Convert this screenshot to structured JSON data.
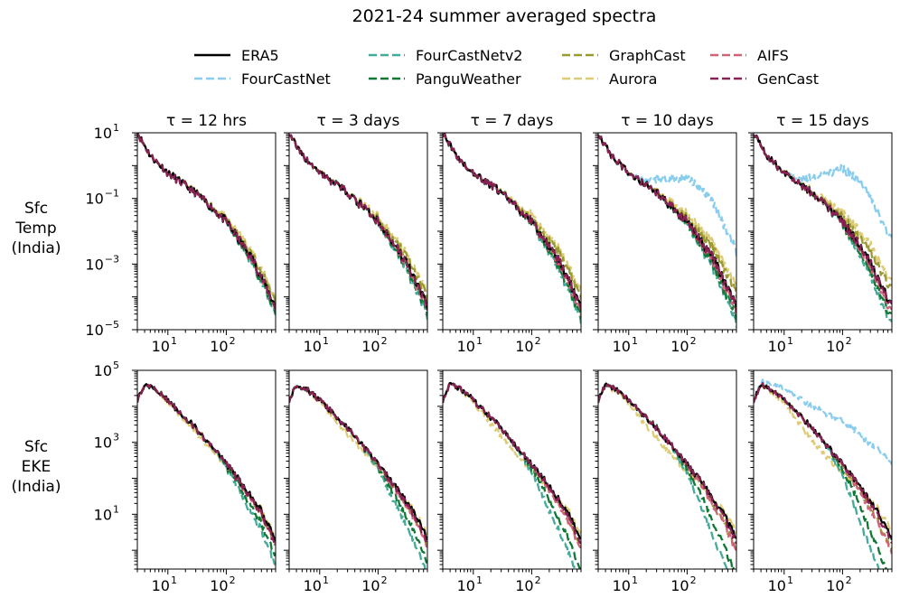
{
  "title": "2021-24 summer averaged spectra",
  "colors": {
    "ERA5": "#000000",
    "FourCastNet": "#88ccee",
    "FourCastNetv2": "#44aa99",
    "PanguWeather": "#117733",
    "GraphCast": "#999933",
    "Aurora": "#ddcc77",
    "AIFS": "#cc6677",
    "GenCast": "#882255"
  },
  "chart_data": {
    "type": "line",
    "title": "2021-24 summer averaged spectra",
    "legend": {
      "placement": "top-center",
      "entries": [
        "ERA5",
        "FourCastNet",
        "FourCastNetv2",
        "PanguWeather",
        "GraphCast",
        "Aurora",
        "AIFS",
        "GenCast"
      ]
    },
    "columns": [
      "τ = 12 hrs",
      "τ = 3 days",
      "τ = 7 days",
      "τ = 10 days",
      "τ = 15 days"
    ],
    "x_scale": "log",
    "xlim": [
      3,
      700
    ],
    "x_ticks": [
      {
        "value": 10,
        "label": "10",
        "exp": "1"
      },
      {
        "value": 100,
        "label": "10",
        "exp": "2"
      }
    ],
    "rows": [
      {
        "label": [
          "Sfc",
          "Temp",
          "(India)"
        ],
        "y_scale": "log",
        "ylim": [
          1e-05,
          10
        ],
        "y_ticks": [
          {
            "value": 10,
            "label": "10",
            "exp": "1"
          },
          {
            "value": 0.1,
            "label": "10",
            "exp": "−1"
          },
          {
            "value": 0.001,
            "label": "10",
            "exp": "−3"
          },
          {
            "value": 1e-05,
            "label": "10",
            "exp": "−5"
          }
        ],
        "base_curve": [
          [
            3,
            10
          ],
          [
            5,
            2
          ],
          [
            10,
            0.6
          ],
          [
            30,
            0.15
          ],
          [
            100,
            0.02
          ],
          [
            300,
            0.0012
          ],
          [
            700,
            5e-05
          ]
        ],
        "deviations": {
          "FourCastNet": [
            [
              3,
              1
            ],
            [
              10,
              1
            ],
            [
              20,
              1.5
            ],
            [
              50,
              8
            ],
            [
              100,
              40
            ],
            [
              200,
              100
            ],
            [
              400,
              100
            ],
            [
              700,
              100
            ]
          ],
          "FourCastNetv2": [
            [
              3,
              1
            ],
            [
              30,
              1
            ],
            [
              100,
              0.85
            ],
            [
              300,
              0.4
            ],
            [
              700,
              0.25
            ]
          ],
          "PanguWeather": [
            [
              3,
              1
            ],
            [
              30,
              1
            ],
            [
              100,
              0.9
            ],
            [
              300,
              0.55
            ],
            [
              700,
              0.4
            ]
          ],
          "GraphCast": [
            [
              3,
              1
            ],
            [
              30,
              1
            ],
            [
              100,
              1.3
            ],
            [
              300,
              2.2
            ],
            [
              700,
              3.0
            ]
          ],
          "Aurora": [
            [
              3,
              1
            ],
            [
              30,
              1.1
            ],
            [
              100,
              1.8
            ],
            [
              300,
              3.5
            ],
            [
              700,
              5.0
            ]
          ],
          "AIFS": [
            [
              3,
              1
            ],
            [
              30,
              1
            ],
            [
              100,
              0.95
            ],
            [
              300,
              0.75
            ],
            [
              700,
              0.6
            ]
          ],
          "GenCast": [
            [
              3,
              1
            ],
            [
              30,
              1
            ],
            [
              100,
              1.0
            ],
            [
              300,
              0.95
            ],
            [
              700,
              0.9
            ]
          ]
        },
        "fourcastnet_visible_from_column": 3
      },
      {
        "label": [
          "Sfc",
          "EKE",
          "(India)"
        ],
        "y_scale": "log",
        "ylim": [
          0.3,
          100000
        ],
        "y_ticks": [
          {
            "value": 100000,
            "label": "10",
            "exp": "5"
          },
          {
            "value": 1000,
            "label": "10",
            "exp": "3"
          },
          {
            "value": 10,
            "label": "10",
            "exp": "1"
          }
        ],
        "base_curve": [
          [
            3,
            15000
          ],
          [
            4,
            40000
          ],
          [
            6,
            30000
          ],
          [
            10,
            15000
          ],
          [
            30,
            2500
          ],
          [
            100,
            250
          ],
          [
            200,
            60
          ],
          [
            400,
            12
          ],
          [
            700,
            2
          ]
        ],
        "deviations": {
          "FourCastNet": [
            [
              3,
              1
            ],
            [
              10,
              2
            ],
            [
              30,
              4
            ],
            [
              100,
              15
            ],
            [
              300,
              40
            ],
            [
              700,
              120
            ]
          ],
          "FourCastNetv2": [
            [
              3,
              1
            ],
            [
              50,
              1
            ],
            [
              100,
              0.5
            ],
            [
              200,
              0.1
            ],
            [
              400,
              0.03
            ],
            [
              700,
              0.01
            ]
          ],
          "PanguWeather": [
            [
              3,
              1
            ],
            [
              60,
              1
            ],
            [
              150,
              0.45
            ],
            [
              300,
              0.15
            ],
            [
              700,
              0.05
            ]
          ],
          "GraphCast": [
            [
              3,
              1
            ],
            [
              60,
              1
            ],
            [
              200,
              0.75
            ],
            [
              700,
              0.45
            ]
          ],
          "Aurora": [
            [
              3,
              1
            ],
            [
              10,
              0.8
            ],
            [
              30,
              0.45
            ],
            [
              100,
              0.55
            ],
            [
              300,
              1.1
            ],
            [
              700,
              1.6
            ]
          ],
          "AIFS": [
            [
              3,
              1
            ],
            [
              60,
              1
            ],
            [
              200,
              0.7
            ],
            [
              700,
              0.4
            ]
          ],
          "GenCast": [
            [
              3,
              1
            ],
            [
              100,
              1
            ],
            [
              300,
              0.9
            ],
            [
              700,
              0.75
            ]
          ]
        },
        "fourcastnet_visible_from_column": 4
      }
    ]
  }
}
